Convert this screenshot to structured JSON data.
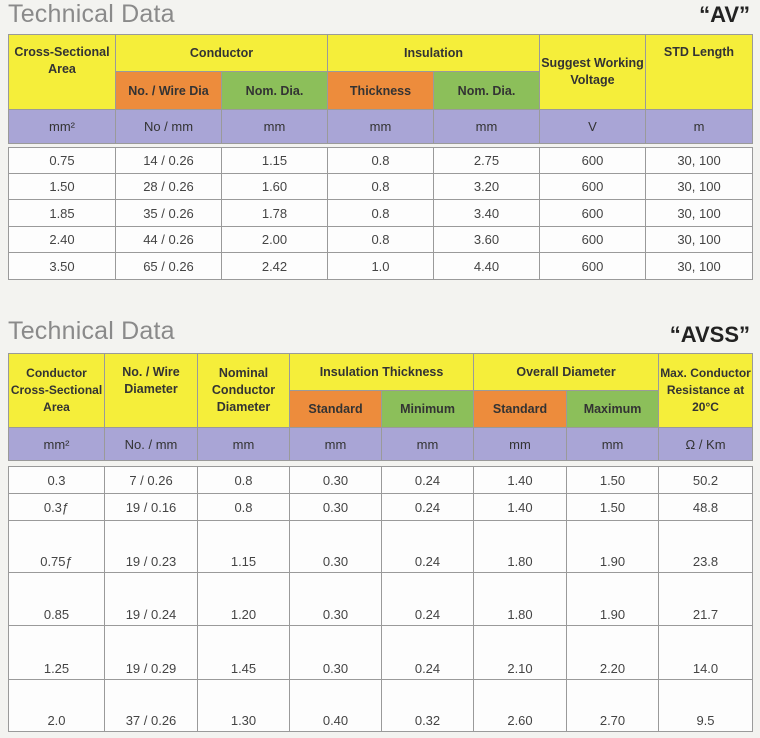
{
  "av": {
    "title": "Technical Data",
    "code": "“AV”",
    "headers": {
      "area": "Cross-Sectional Area",
      "conductor": "Conductor",
      "insulation": "Insulation",
      "voltage": "Suggest Working Voltage",
      "length": "STD Length",
      "wire": "No. / Wire Dia",
      "cond_nom": "Nom. Dia.",
      "thickness": "Thickness",
      "ins_nom": "Nom. Dia."
    },
    "units": [
      "mm²",
      "No / mm",
      "mm",
      "mm",
      "mm",
      "V",
      "m"
    ],
    "rows": [
      [
        "0.75",
        "14 / 0.26",
        "1.15",
        "0.8",
        "2.75",
        "600",
        "30, 100"
      ],
      [
        "1.50",
        "28 / 0.26",
        "1.60",
        "0.8",
        "3.20",
        "600",
        "30, 100"
      ],
      [
        "1.85",
        "35 / 0.26",
        "1.78",
        "0.8",
        "3.40",
        "600",
        "30, 100"
      ],
      [
        "2.40",
        "44 / 0.26",
        "2.00",
        "0.8",
        "3.60",
        "600",
        "30, 100"
      ],
      [
        "3.50",
        "65 / 0.26",
        "2.42",
        "1.0",
        "4.40",
        "600",
        "30, 100"
      ]
    ]
  },
  "avss": {
    "title": "Technical Data",
    "code": "“AVSS”",
    "headers": {
      "area": "Conductor Cross-Sectional Area",
      "wire": "No. / Wire Diameter",
      "nominal": "Nominal Conductor Diameter",
      "ins_thick": "Insulation Thickness",
      "overall": "Overall Diameter",
      "resistance": "Max. Conductor Resistance at 20°C",
      "standard1": "Standard",
      "minimum": "Minimum",
      "standard2": "Standard",
      "maximum": "Maximum"
    },
    "units": [
      "mm²",
      "No. / mm",
      "mm",
      "mm",
      "mm",
      "mm",
      "mm",
      "Ω / Km"
    ],
    "rows": [
      [
        "0.3",
        "7 / 0.26",
        "0.8",
        "0.30",
        "0.24",
        "1.40",
        "1.50",
        "50.2"
      ],
      [
        "0.3ƒ",
        "19 / 0.16",
        "0.8",
        "0.30",
        "0.24",
        "1.40",
        "1.50",
        "48.8"
      ],
      [
        "0.75ƒ",
        "19 / 0.23",
        "1.15",
        "0.30",
        "0.24",
        "1.80",
        "1.90",
        "23.8"
      ],
      [
        "0.85",
        "19 / 0.24",
        "1.20",
        "0.30",
        "0.24",
        "1.80",
        "1.90",
        "21.7"
      ],
      [
        "1.25",
        "19 / 0.29",
        "1.45",
        "0.30",
        "0.24",
        "2.10",
        "2.20",
        "14.0"
      ],
      [
        "2.0",
        "37 / 0.26",
        "1.30",
        "0.40",
        "0.32",
        "2.60",
        "2.70",
        "9.5"
      ]
    ]
  }
}
